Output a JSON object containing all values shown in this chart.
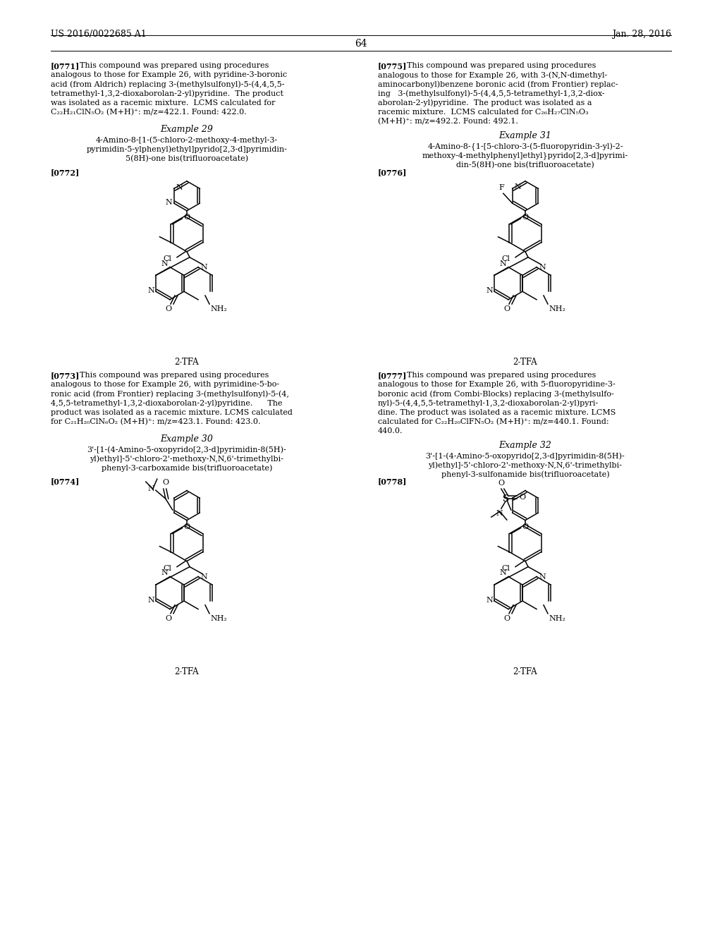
{
  "page_number": "64",
  "patent_number": "US 2016/0022685 A1",
  "patent_date": "Jan. 28, 2016",
  "bg": "#ffffff",
  "sections": [
    {
      "para_id": "[0771]",
      "text": "This compound was prepared using procedures analogous to those for Example 26, with pyridine-3-boronic acid (from Aldrich) replacing 3-(methylsulfonyl)-5-(4,4,5,5-tetramethyl-1,3,2-dioxaborolan-2-yl)pyridine. The product was isolated as a racemic mixture. LCMS calculated for C22H21ClN5O2 (M+H)+: m/z=422.1. Found: 422.0.",
      "example": "Example 29",
      "name_lines": [
        "4-Amino-8-[1-(5-chloro-2-methoxy-4-methyl-3-",
        "pyrimidin-5-ylphenyl)ethyl]pyrido[2,3-d]pyrimidin-",
        "5(8H)-one bis(trifluoroacetate)"
      ],
      "struct_id": "[0772]",
      "col": 0
    },
    {
      "para_id": "[0775]",
      "text": "This compound was prepared using procedures analogous to those for Example 26, with 3-(N,N-dimethylaminocarbonyl)benzene boronic acid (from Frontier) replacing 3-(methylsulfonyl)-5-(4,4,5,5-tetramethyl-1,3,2-dioxaborolan-2-yl)pyridine. The product was isolated as a racemic mixture. LCMS calculated for C26H27ClN5O3 (M+H)+: m/z=492.2. Found: 492.1.",
      "example": "Example 31",
      "name_lines": [
        "4-Amino-8-{1-[5-chloro-3-(5-fluoropyridin-3-yl)-2-",
        "methoxy-4-methylphenyl]ethyl}pyrido[2,3-d]pyrimi-",
        "din-5(8H)-one bis(trifluoroacetate)"
      ],
      "struct_id": "[0776]",
      "col": 1
    },
    {
      "para_id": "[0773]",
      "text": "This compound was prepared using procedures analogous to those for Example 26, with pyrimidine-5-boronic acid (from Frontier) replacing 3-(methylsulfonyl)-5-(4,4,5,5-tetramethyl-1,3,2-dioxaborolan-2-yl)pyridine.    The product was isolated as a racemic mixture. LCMS calculated for C21H20ClN6O2 (M+H)+: m/z=423.1. Found: 423.0.",
      "example": "Example 30",
      "name_lines": [
        "3'-[1-(4-Amino-5-oxopyrido[2,3-d]pyrimidin-8(5H)-",
        "yl)ethyl]-5'-chloro-2'-methoxy-N,N,6'-trimethylbi-",
        "phenyl-3-carboxamide bis(trifluoroacetate)"
      ],
      "struct_id": "[0774]",
      "col": 0
    },
    {
      "para_id": "[0777]",
      "text": "This compound was prepared using procedures analogous to those for Example 26, with 5-fluoropyridine-3-boronic acid (from Combi-Blocks) replacing 3-(methylsulfonyl)-5-(4,4,5,5-tetramethyl-1,3,2-dioxaborolan-2-yl)pyridine. The product was isolated as a racemic mixture. LCMS calculated for C22H20ClFN5O2 (M+H)+: m/z=440.1. Found: 440.0.",
      "example": "Example 32",
      "name_lines": [
        "3'-[1-(4-Amino-5-oxopyrido[2,3-d]pyrimidin-8(5H)-",
        "yl)ethyl]-5'-chloro-2'-methoxy-N,N,6'-trimethylbi-",
        "phenyl-3-sulfonamide bis(trifluoroacetate)"
      ],
      "struct_id": "[0778]",
      "col": 1
    }
  ]
}
